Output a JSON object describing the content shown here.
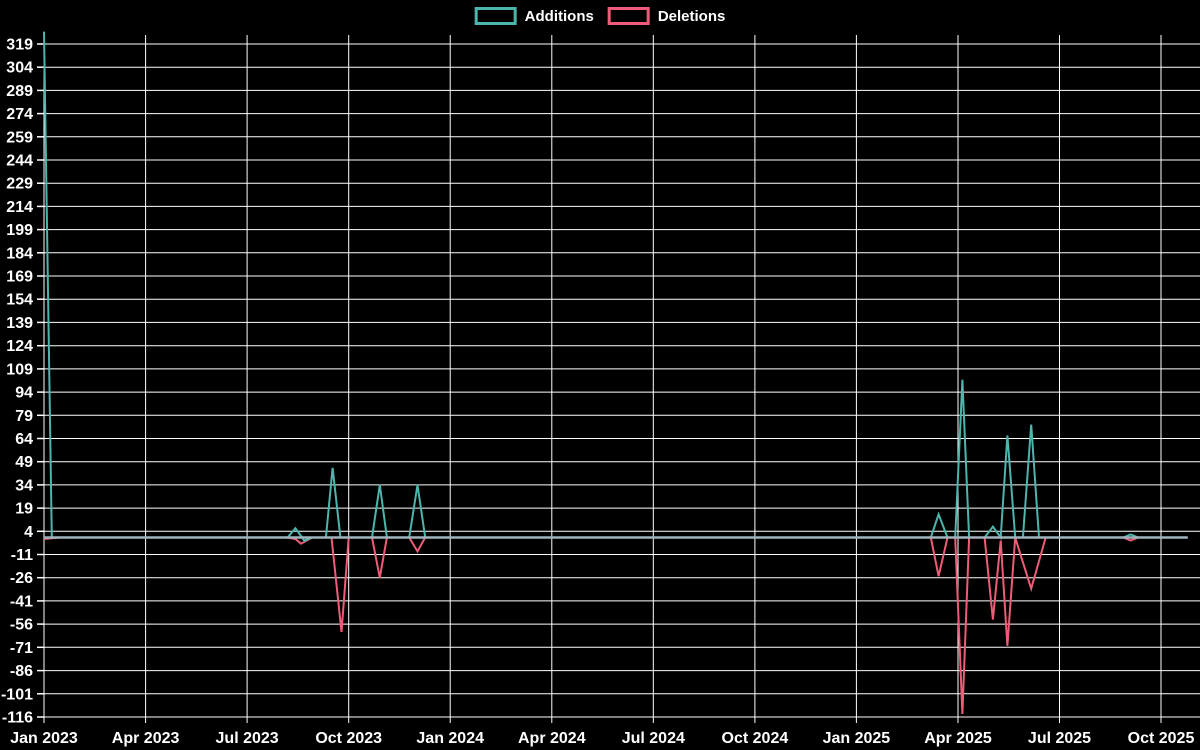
{
  "legend": {
    "items": [
      {
        "label": "Additions",
        "color": "#4db6ac"
      },
      {
        "label": "Deletions",
        "color": "#ef5c78"
      }
    ]
  },
  "chart_data": {
    "type": "line",
    "title": "",
    "xlabel": "",
    "ylabel": "",
    "background_color": "#000000",
    "gridline_color": "#ffffff",
    "zero_line_color": "#a0b4bc",
    "text_color": "#ffffff",
    "grid": true,
    "legend_position": "top-center",
    "x_axis": {
      "labels": [
        "Jan 2023",
        "Apr 2023",
        "Jul 2023",
        "Oct 2023",
        "Jan 2024",
        "Apr 2024",
        "Jul 2024",
        "Oct 2024",
        "Jan 2025",
        "Apr 2025",
        "Jul 2025",
        "Oct 2025"
      ],
      "interval": "quarterly"
    },
    "y_axis": {
      "ticks": [
        319,
        304,
        289,
        274,
        259,
        244,
        229,
        214,
        199,
        184,
        169,
        154,
        139,
        124,
        109,
        94,
        79,
        64,
        49,
        34,
        19,
        4,
        -11,
        -26,
        -41,
        -56,
        -71,
        -86,
        -101,
        -116
      ],
      "min": -116,
      "max": 319,
      "step": 15
    },
    "series": [
      {
        "name": "Additions",
        "color": "#4db6ac",
        "points": [
          [
            "2023-01-01",
            327
          ],
          [
            "2023-01-08",
            0
          ],
          [
            "2023-08-07",
            0
          ],
          [
            "2023-08-14",
            6
          ],
          [
            "2023-08-22",
            -2
          ],
          [
            "2023-08-29",
            0
          ],
          [
            "2023-09-11",
            0
          ],
          [
            "2023-09-17",
            45
          ],
          [
            "2023-09-24",
            0
          ],
          [
            "2023-10-22",
            0
          ],
          [
            "2023-10-29",
            34
          ],
          [
            "2023-11-05",
            0
          ],
          [
            "2023-11-25",
            0
          ],
          [
            "2023-12-02",
            34
          ],
          [
            "2023-12-09",
            0
          ],
          [
            "2025-03-07",
            0
          ],
          [
            "2025-03-14",
            15
          ],
          [
            "2025-03-22",
            0
          ],
          [
            "2025-03-29",
            0
          ],
          [
            "2025-04-05",
            102
          ],
          [
            "2025-04-11",
            0
          ],
          [
            "2025-04-25",
            0
          ],
          [
            "2025-05-02",
            7
          ],
          [
            "2025-05-09",
            0
          ],
          [
            "2025-05-15",
            66
          ],
          [
            "2025-05-22",
            0
          ],
          [
            "2025-05-29",
            0
          ],
          [
            "2025-06-06",
            73
          ],
          [
            "2025-06-13",
            0
          ],
          [
            "2025-08-28",
            0
          ],
          [
            "2025-09-04",
            2
          ],
          [
            "2025-09-11",
            0
          ],
          [
            "2025-10-25",
            0
          ]
        ]
      },
      {
        "name": "Deletions",
        "color": "#ef5c78",
        "points": [
          [
            "2023-01-01",
            -1
          ],
          [
            "2023-01-15",
            0
          ],
          [
            "2023-08-07",
            0
          ],
          [
            "2023-08-14",
            -1
          ],
          [
            "2023-08-19",
            -4
          ],
          [
            "2023-08-29",
            0
          ],
          [
            "2023-09-16",
            0
          ],
          [
            "2023-09-25",
            -61
          ],
          [
            "2023-10-01",
            0
          ],
          [
            "2023-10-22",
            0
          ],
          [
            "2023-10-29",
            -26
          ],
          [
            "2023-11-05",
            0
          ],
          [
            "2023-11-25",
            0
          ],
          [
            "2023-12-02",
            -9
          ],
          [
            "2023-12-09",
            0
          ],
          [
            "2025-03-07",
            0
          ],
          [
            "2025-03-14",
            -25
          ],
          [
            "2025-03-22",
            0
          ],
          [
            "2025-03-29",
            0
          ],
          [
            "2025-04-05",
            -114
          ],
          [
            "2025-04-11",
            0
          ],
          [
            "2025-04-25",
            0
          ],
          [
            "2025-05-02",
            -53
          ],
          [
            "2025-05-09",
            -2
          ],
          [
            "2025-05-15",
            -70
          ],
          [
            "2025-05-22",
            0
          ],
          [
            "2025-05-29",
            -16
          ],
          [
            "2025-06-06",
            -33
          ],
          [
            "2025-06-19",
            0
          ],
          [
            "2025-08-28",
            0
          ],
          [
            "2025-09-04",
            -2
          ],
          [
            "2025-09-11",
            0
          ],
          [
            "2025-10-25",
            0
          ]
        ]
      }
    ]
  }
}
